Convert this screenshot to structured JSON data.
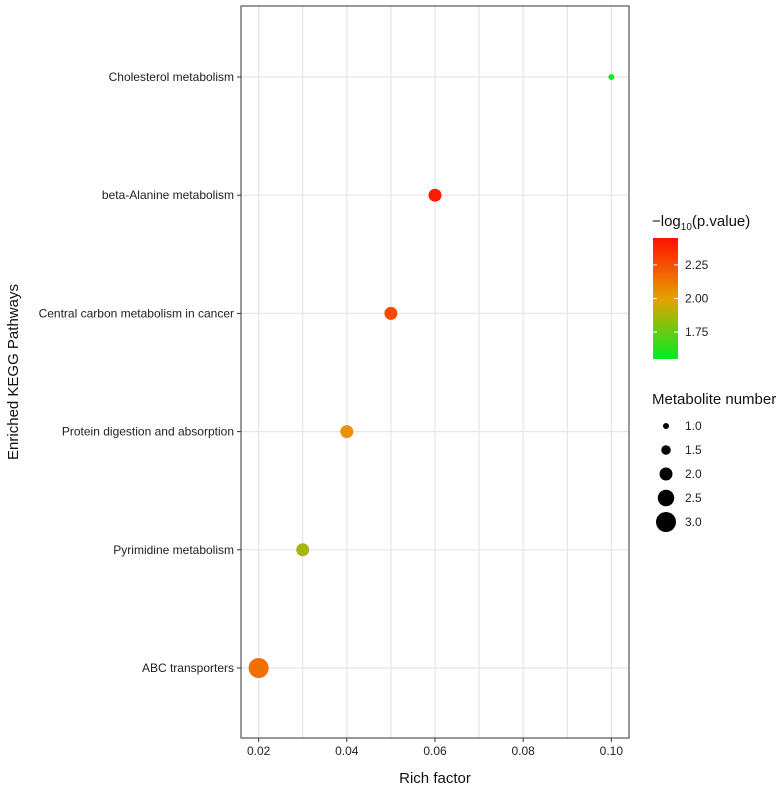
{
  "chart_data": {
    "type": "scatter",
    "title": "",
    "xlabel": "Rich factor",
    "ylabel": "Enriched KEGG Pathways",
    "xlim": [
      0.016,
      0.104
    ],
    "x_ticks": [
      0.02,
      0.04,
      0.06,
      0.08,
      0.1
    ],
    "x_tick_labels": [
      "0.02",
      "0.04",
      "0.06",
      "0.08",
      "0.10"
    ],
    "categories": [
      "ABC transporters",
      "Pyrimidine metabolism",
      "Protein digestion and absorption",
      "Central carbon metabolism in cancer",
      "beta-Alanine metabolism",
      "Cholesterol metabolism"
    ],
    "points": [
      {
        "pathway": "Cholesterol metabolism",
        "rich_factor": 0.1,
        "neg_log10_pvalue": 1.58,
        "metabolite_number": 1
      },
      {
        "pathway": "beta-Alanine metabolism",
        "rich_factor": 0.06,
        "neg_log10_pvalue": 2.42,
        "metabolite_number": 2
      },
      {
        "pathway": "Central carbon metabolism in cancer",
        "rich_factor": 0.05,
        "neg_log10_pvalue": 2.27,
        "metabolite_number": 2
      },
      {
        "pathway": "Protein digestion and absorption",
        "rich_factor": 0.04,
        "neg_log10_pvalue": 2.05,
        "metabolite_number": 2
      },
      {
        "pathway": "Pyrimidine metabolism",
        "rich_factor": 0.03,
        "neg_log10_pvalue": 1.88,
        "metabolite_number": 2
      },
      {
        "pathway": "ABC transporters",
        "rich_factor": 0.02,
        "neg_log10_pvalue": 2.15,
        "metabolite_number": 3
      }
    ],
    "color_legend": {
      "title_prefix": "−log",
      "title_sub": "10",
      "title_suffix": "(p.value)",
      "range": [
        1.55,
        2.45
      ],
      "ticks": [
        1.75,
        2.0,
        2.25
      ],
      "tick_labels": [
        "1.75",
        "2.00",
        "2.25"
      ],
      "low_color": "#00ee22",
      "mid_color": "#e8a000",
      "high_color": "#ff1100"
    },
    "size_legend": {
      "title": "Metabolite number",
      "values": [
        1.0,
        1.5,
        2.0,
        2.5,
        3.0
      ],
      "labels": [
        "1.0",
        "1.5",
        "2.0",
        "2.5",
        "3.0"
      ],
      "legend_point_color": "#000000"
    },
    "grid": true,
    "legend_position": "right"
  }
}
